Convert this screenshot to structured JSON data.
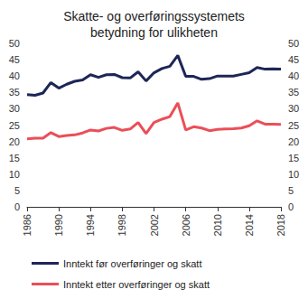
{
  "chart_data": {
    "type": "line",
    "title": "Skatte- og overføringssystemets\nbetydning for ulikheten",
    "x": [
      1986,
      1987,
      1988,
      1989,
      1990,
      1991,
      1992,
      1993,
      1994,
      1995,
      1996,
      1997,
      1998,
      1999,
      2000,
      2001,
      2002,
      2003,
      2004,
      2005,
      2006,
      2007,
      2008,
      2009,
      2010,
      2011,
      2012,
      2013,
      2014,
      2015,
      2016,
      2017,
      2018
    ],
    "series": [
      {
        "name": "Inntekt før overføringer og skatt",
        "color": "#1d2657",
        "values": [
          34.3,
          34.1,
          34.8,
          38.0,
          36.3,
          37.5,
          38.4,
          38.8,
          40.4,
          39.6,
          40.4,
          40.5,
          39.5,
          39.4,
          41.3,
          38.5,
          41.0,
          42.3,
          43.0,
          46.3,
          39.9,
          39.9,
          39.0,
          39.2,
          40.0,
          40.0,
          40.0,
          40.5,
          41.0,
          42.6,
          42.1,
          42.2,
          42.1
        ]
      },
      {
        "name": "Inntekt etter overføringer og skatt",
        "color": "#ea4f58",
        "values": [
          20.8,
          21.0,
          21.0,
          22.7,
          21.5,
          21.8,
          22.0,
          22.6,
          23.5,
          23.2,
          24.0,
          24.3,
          23.4,
          23.8,
          25.8,
          22.4,
          25.8,
          26.8,
          27.6,
          31.8,
          23.5,
          24.5,
          24.1,
          23.3,
          23.7,
          23.8,
          23.9,
          24.1,
          24.8,
          26.3,
          25.3,
          25.3,
          25.2
        ]
      }
    ],
    "xlim": [
      1986,
      2018
    ],
    "xticks": [
      1986,
      1990,
      1994,
      1998,
      2002,
      2006,
      2010,
      2014,
      2018
    ],
    "ylim": [
      0,
      50
    ],
    "yticks": [
      0,
      5,
      10,
      15,
      20,
      25,
      30,
      35,
      40,
      45,
      50
    ],
    "y2lim": [
      0,
      50
    ],
    "y2ticks": [
      0,
      5,
      10,
      15,
      20,
      25,
      30,
      35,
      40,
      45,
      50
    ],
    "grid": false,
    "legend": "bottom"
  }
}
